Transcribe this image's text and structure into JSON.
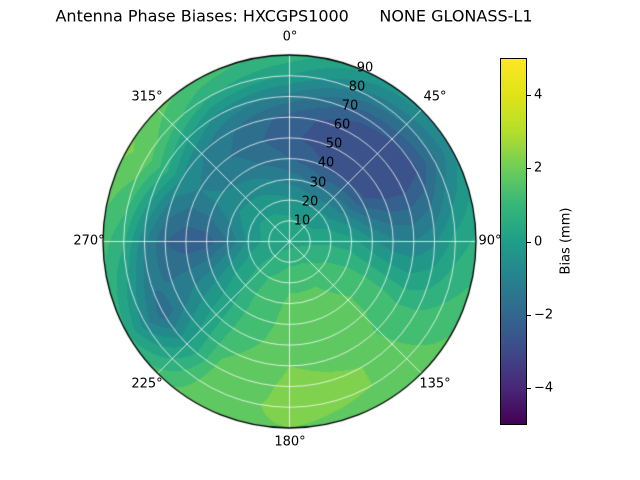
{
  "chart_data": {
    "type": "heatmap",
    "projection": "polar",
    "title": "Antenna Phase Biases: HXCGPS1000      NONE GLONASS-L1",
    "colormap": "viridis",
    "colormap_stops": [
      "#440154",
      "#482878",
      "#3e4a89",
      "#31688e",
      "#26828e",
      "#1f9e89",
      "#35b779",
      "#6dcd59",
      "#b4de2c",
      "#dfe318",
      "#fde725"
    ],
    "colorbar_label": "Bias (mm)",
    "colorbar_tick_labels_top_to_bottom": [
      "4",
      "2",
      "0",
      "−2",
      "−4"
    ],
    "value_range": [
      -5,
      5
    ],
    "contour_level_step": 0.5,
    "angle_labels": [
      "0°",
      "45°",
      "90°",
      "135°",
      "180°",
      "225°",
      "270°",
      "315°"
    ],
    "radial_tick_labels": [
      "10",
      "20",
      "30",
      "40",
      "50",
      "60",
      "70",
      "80",
      "90"
    ],
    "azimuth_deg": [
      0,
      30,
      60,
      90,
      120,
      150,
      180,
      210,
      240,
      270,
      300,
      330
    ],
    "zenith_deg": [
      0,
      10,
      20,
      30,
      40,
      50,
      60,
      70,
      80,
      90
    ],
    "bias_mm": [
      [
        0.3,
        0.3,
        0.3,
        0.3,
        0.3,
        0.3,
        0.3,
        0.3,
        0.3,
        0.3,
        0.3,
        0.3
      ],
      [
        0.1,
        0.0,
        0.1,
        0.4,
        0.7,
        0.9,
        0.9,
        0.7,
        0.4,
        0.2,
        0.2,
        0.2
      ],
      [
        -0.4,
        -0.6,
        -0.3,
        0.4,
        1.0,
        1.4,
        1.4,
        1.0,
        0.3,
        -0.4,
        -0.1,
        -0.2
      ],
      [
        -1.2,
        -1.6,
        -1.2,
        0.2,
        1.2,
        1.6,
        1.6,
        1.1,
        0.0,
        -1.5,
        -0.6,
        -0.7
      ],
      [
        -2.0,
        -2.6,
        -2.4,
        -0.4,
        1.3,
        1.8,
        1.7,
        1.1,
        -0.4,
        -2.3,
        -0.9,
        -1.3
      ],
      [
        -2.4,
        -2.9,
        -2.9,
        -0.9,
        1.2,
        1.9,
        1.8,
        1.2,
        -0.7,
        -2.4,
        -1.0,
        -1.6
      ],
      [
        -2.2,
        -2.9,
        -3.0,
        -1.0,
        1.0,
        1.9,
        2.0,
        1.4,
        -1.2,
        -2.0,
        -0.5,
        -1.4
      ],
      [
        -1.2,
        -2.3,
        -2.6,
        -0.6,
        1.1,
        2.0,
        2.1,
        1.6,
        -1.8,
        -0.9,
        0.8,
        -0.6
      ],
      [
        0.0,
        -1.2,
        -1.6,
        0.2,
        1.3,
        2.0,
        2.1,
        1.8,
        -0.8,
        0.6,
        1.8,
        0.6
      ],
      [
        0.8,
        -0.2,
        -0.6,
        0.6,
        1.5,
        1.9,
        2.0,
        1.9,
        0.5,
        1.2,
        2.1,
        1.3
      ]
    ]
  }
}
